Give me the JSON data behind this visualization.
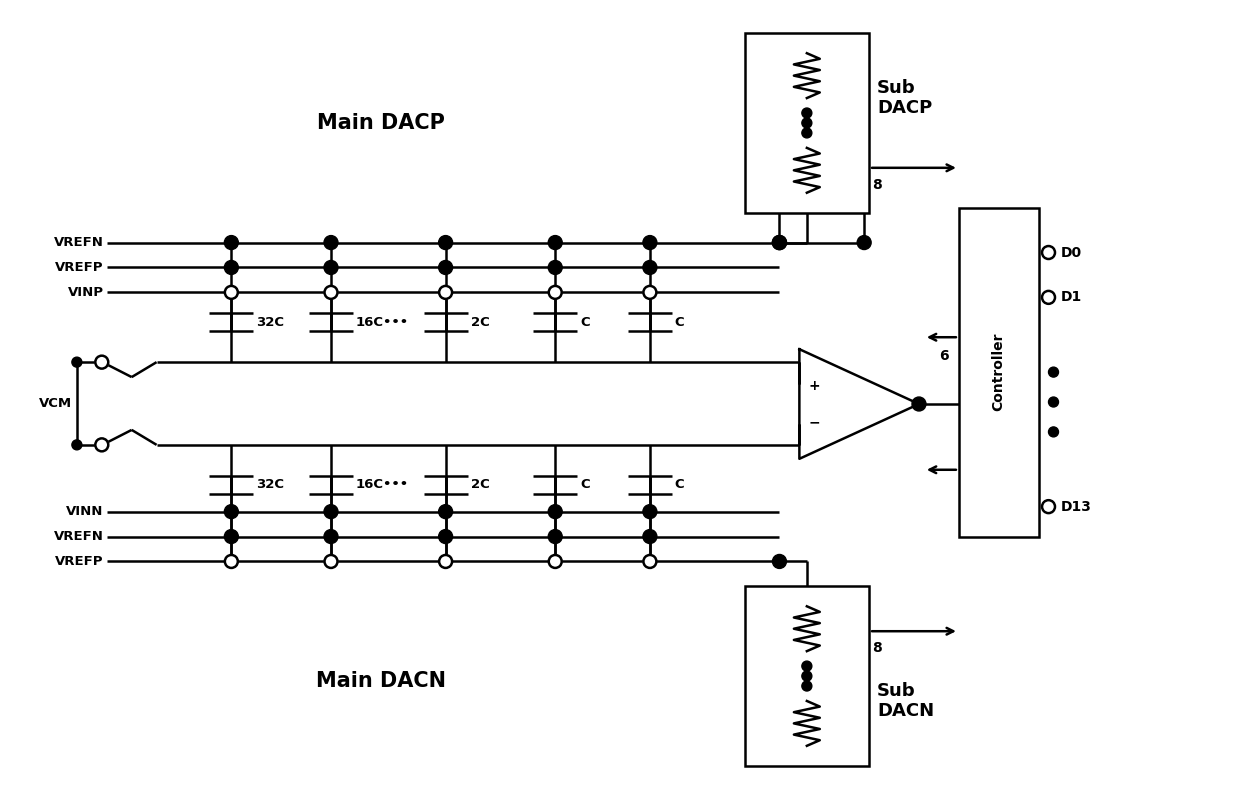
{
  "fig_width": 12.4,
  "fig_height": 8.07,
  "dpi": 100,
  "bg_color": "white",
  "line_color": "black",
  "lw": 1.8,
  "main_dacp_label": "Main DACP",
  "main_dacn_label": "Main DACN",
  "sub_dacp_label": "Sub\nDACP",
  "sub_dacn_label": "Sub\nDACN",
  "controller_label": "Controller",
  "left_labels_top": [
    "VREFN",
    "VREFP",
    "VINP"
  ],
  "left_labels_bot": [
    "VINN",
    "VREFN",
    "VREFP"
  ],
  "vcm_label": "VCM",
  "top_cap_labels": [
    "32C",
    "16C•••",
    "2C",
    "C",
    "C"
  ],
  "bot_cap_labels": [
    "32C",
    "16C•••",
    "2C",
    "C",
    "C"
  ],
  "d_labels": [
    "D0",
    "D1",
    "D13"
  ],
  "num_6": "6",
  "num_8_top": "8",
  "num_8_bot": "8"
}
